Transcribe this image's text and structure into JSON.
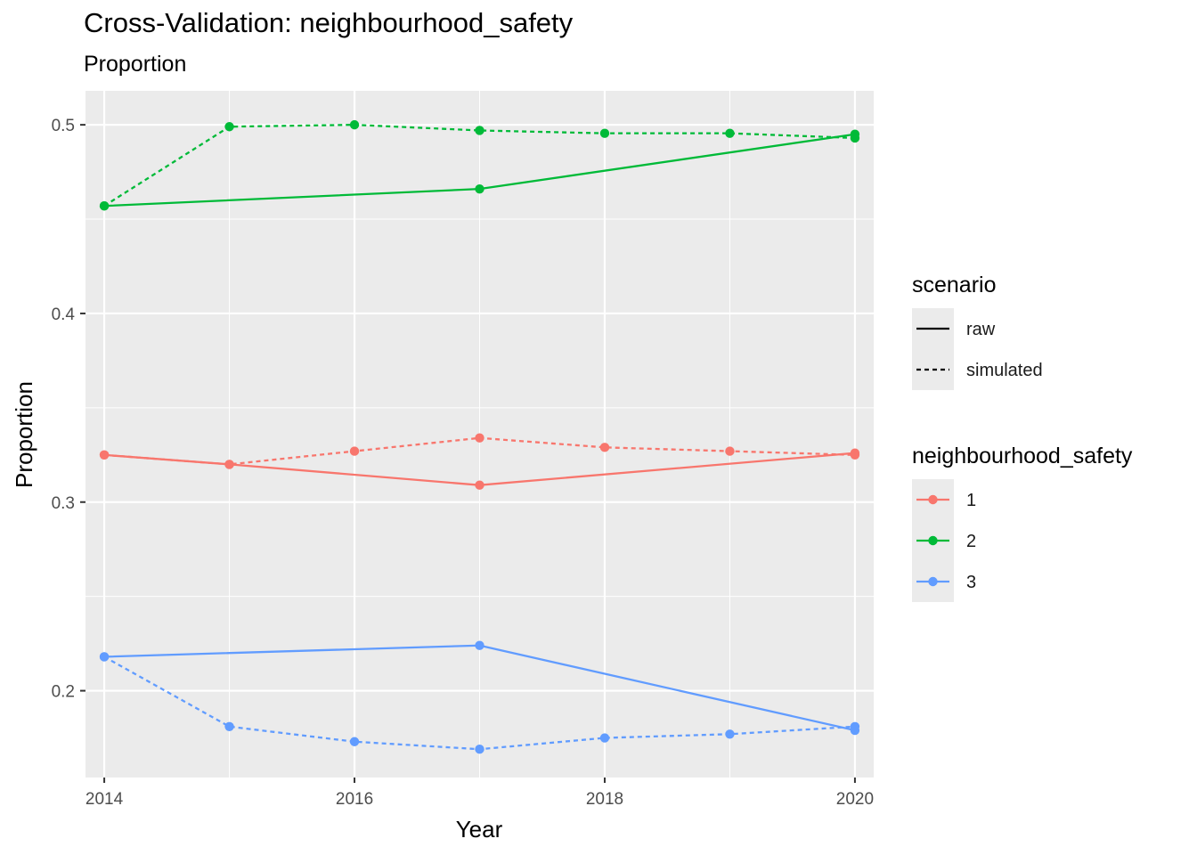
{
  "title": "Cross-Validation: neighbourhood_safety",
  "subtitle": "Proportion",
  "chart_data": {
    "type": "line",
    "xlabel": "Year",
    "ylabel": "Proportion",
    "xlim": [
      2013.85,
      2020.15
    ],
    "ylim": [
      0.154,
      0.518
    ],
    "x_ticks": [
      2014,
      2016,
      2018,
      2020
    ],
    "x_tick_labels": [
      "2014",
      "2016",
      "2018",
      "2020"
    ],
    "y_ticks": [
      0.2,
      0.3,
      0.4,
      0.5
    ],
    "y_tick_labels": [
      "0.2",
      "0.3",
      "0.4",
      "0.5"
    ],
    "grid": true,
    "legend_position": "right",
    "legends": [
      {
        "title": "scenario",
        "entries": [
          {
            "label": "raw",
            "linetype": "solid"
          },
          {
            "label": "simulated",
            "linetype": "dashed"
          }
        ]
      },
      {
        "title": "neighbourhood_safety",
        "entries": [
          {
            "label": "1",
            "color": "#F8766D"
          },
          {
            "label": "2",
            "color": "#00BA38"
          },
          {
            "label": "3",
            "color": "#619CFF"
          }
        ]
      }
    ],
    "series": [
      {
        "name": "1",
        "scenario": "raw",
        "color": "#F8766D",
        "linetype": "solid",
        "x": [
          2014,
          2015,
          2017,
          2020
        ],
        "values": [
          0.325,
          0.32,
          0.309,
          0.326
        ]
      },
      {
        "name": "1",
        "scenario": "simulated",
        "color": "#F8766D",
        "linetype": "dashed",
        "x": [
          2014,
          2015,
          2016,
          2017,
          2018,
          2019,
          2020
        ],
        "values": [
          0.325,
          0.32,
          0.327,
          0.334,
          0.329,
          0.327,
          0.325
        ]
      },
      {
        "name": "2",
        "scenario": "raw",
        "color": "#00BA38",
        "linetype": "solid",
        "x": [
          2014,
          2017,
          2020
        ],
        "values": [
          0.457,
          0.466,
          0.495
        ]
      },
      {
        "name": "2",
        "scenario": "simulated",
        "color": "#00BA38",
        "linetype": "dashed",
        "x": [
          2014,
          2015,
          2016,
          2017,
          2018,
          2019,
          2020
        ],
        "values": [
          0.457,
          0.499,
          0.5,
          0.497,
          0.4955,
          0.4955,
          0.493
        ]
      },
      {
        "name": "3",
        "scenario": "raw",
        "color": "#619CFF",
        "linetype": "solid",
        "x": [
          2014,
          2017,
          2020
        ],
        "values": [
          0.218,
          0.224,
          0.179
        ]
      },
      {
        "name": "3",
        "scenario": "simulated",
        "color": "#619CFF",
        "linetype": "dashed",
        "x": [
          2014,
          2015,
          2016,
          2017,
          2018,
          2019,
          2020
        ],
        "values": [
          0.218,
          0.181,
          0.173,
          0.169,
          0.175,
          0.177,
          0.181
        ]
      }
    ]
  }
}
